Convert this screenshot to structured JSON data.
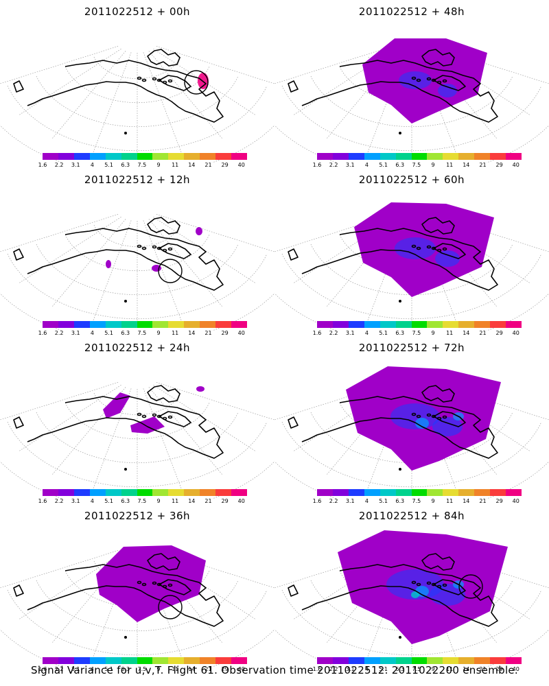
{
  "panels": [
    {
      "title": "2011022512 + 00h",
      "signal": 0,
      "circle": "right"
    },
    {
      "title": "2011022512 + 48h",
      "signal": 3,
      "circle": ""
    },
    {
      "title": "2011022512 + 12h",
      "signal": 1,
      "circle": "center"
    },
    {
      "title": "2011022512 + 60h",
      "signal": 4,
      "circle": ""
    },
    {
      "title": "2011022512 + 24h",
      "signal": 1,
      "circle": ""
    },
    {
      "title": "2011022512 + 72h",
      "signal": 5,
      "circle": ""
    },
    {
      "title": "2011022512 + 36h",
      "signal": 2,
      "circle": "center"
    },
    {
      "title": "2011022512 + 84h",
      "signal": 6,
      "circle": "right"
    }
  ],
  "colorbar": {
    "labels": [
      "1.6",
      "2.2",
      "3.1",
      "4",
      "5.1",
      "6.3",
      "7.5",
      "9",
      "11",
      "14",
      "21",
      "29",
      "40"
    ],
    "colors": [
      "#a000c8",
      "#8200dc",
      "#1e3cff",
      "#00a0ff",
      "#00c8c8",
      "#00d28c",
      "#00dc00",
      "#a0e632",
      "#e6dc32",
      "#e6af2d",
      "#f08228",
      "#fa3c3c",
      "#f00082"
    ]
  },
  "colors": {
    "fill_low": "#a000c8",
    "fill_mid": "#1e3cff",
    "fill_high": "#00a0ff",
    "fill_peak": "#00c8c8",
    "marker": "#f00082"
  },
  "footer": "Signal Variance for u,v,T. Flight 61. Observation time 2011022512. 2011022200 ensemble."
}
